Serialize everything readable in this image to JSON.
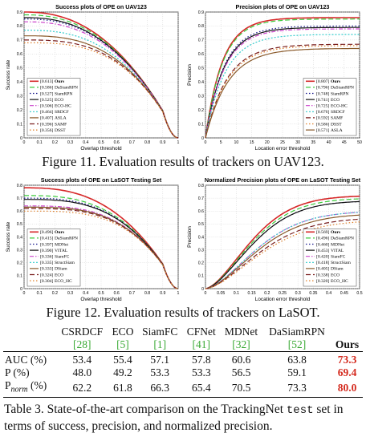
{
  "figure11": {
    "caption": "Figure 11. Evaluation results of trackers on UAV123.",
    "charts": [
      {
        "type": "line",
        "title": "Success plots of OPE on UAV123",
        "xlabel": "Overlap threshold",
        "ylabel": "Success rate",
        "xlim": [
          0,
          1
        ],
        "ylim": [
          0,
          0.9
        ],
        "legend": "bottom-left",
        "grid": true,
        "curve": "success",
        "xticks": [
          "0",
          "0.1",
          "0.2",
          "0.3",
          "0.4",
          "0.5",
          "0.6",
          "0.7",
          "0.8",
          "0.9",
          "1"
        ],
        "yticks": [
          "0",
          "0.1",
          "0.2",
          "0.3",
          "0.4",
          "0.5",
          "0.6",
          "0.7",
          "0.8",
          "0.9"
        ],
        "series": [
          {
            "name": "Ours",
            "score": "[0.613]",
            "bold": true,
            "color": "#d62728",
            "dash": "",
            "y0": 0.9
          },
          {
            "name": "DaSiamRPN",
            "score": "[0.586]",
            "color": "#3ecb3e",
            "dash": "6,3",
            "y0": 0.88
          },
          {
            "name": "SiamRPN",
            "score": "[0.527]",
            "color": "#1a1a8c",
            "dash": "1.5,2.5",
            "y0": 0.85
          },
          {
            "name": "ECO",
            "score": "[0.525]",
            "color": "#111111",
            "dash": "",
            "y0": 0.86
          },
          {
            "name": "ECO-HC",
            "score": "[0.506]",
            "color": "#cc44cc",
            "dash": "5,2,1.5,2",
            "y0": 0.83
          },
          {
            "name": "SRDCF",
            "score": "[0.464]",
            "color": "#33cccc",
            "dash": "2,2",
            "y0": 0.77
          },
          {
            "name": "ASLA",
            "score": "[0.407]",
            "color": "#8a5a2b",
            "dash": "",
            "y0": 0.73
          },
          {
            "name": "SAMF",
            "score": "[0.396]",
            "color": "#7a1f1f",
            "dash": "6,3",
            "y0": 0.7
          },
          {
            "name": "DSST",
            "score": "[0.356]",
            "color": "#e0802a",
            "dash": "1.5,2.5",
            "y0": 0.68
          }
        ]
      },
      {
        "type": "line",
        "title": "Precision plots of OPE on UAV123",
        "xlabel": "Location error threshold",
        "ylabel": "Precision",
        "xlim": [
          0,
          50
        ],
        "ylim": [
          0,
          0.9
        ],
        "legend": "bottom-right",
        "grid": true,
        "curve": "precision",
        "xticks": [
          "0",
          "5",
          "10",
          "15",
          "20",
          "25",
          "30",
          "35",
          "40",
          "45",
          "50"
        ],
        "yticks": [
          "0",
          "0.1",
          "0.2",
          "0.3",
          "0.4",
          "0.5",
          "0.6",
          "0.7",
          "0.8",
          "0.9"
        ],
        "series": [
          {
            "name": "Ours",
            "score": "[0.807]",
            "bold": true,
            "color": "#d62728",
            "dash": "",
            "yend": 0.86
          },
          {
            "name": "DaSiamRPN",
            "score": "[0.796]",
            "color": "#3ecb3e",
            "dash": "6,3",
            "yend": 0.85
          },
          {
            "name": "SiamRPN",
            "score": "[0.748]",
            "color": "#1a1a8c",
            "dash": "1.5,2.5",
            "yend": 0.8
          },
          {
            "name": "ECO",
            "score": "[0.741]",
            "color": "#111111",
            "dash": "",
            "yend": 0.79
          },
          {
            "name": "ECO-HC",
            "score": "[0.725]",
            "color": "#cc44cc",
            "dash": "5,2,1.5,2",
            "yend": 0.78
          },
          {
            "name": "SRDCF",
            "score": "[0.676]",
            "color": "#33cccc",
            "dash": "2,2",
            "yend": 0.74
          },
          {
            "name": "SAMF",
            "score": "[0.592]",
            "color": "#7a1f1f",
            "dash": "6,3",
            "yend": 0.67
          },
          {
            "name": "DSST",
            "score": "[0.586]",
            "color": "#e0802a",
            "dash": "1.5,2.5",
            "yend": 0.66
          },
          {
            "name": "ASLA",
            "score": "[0.571]",
            "color": "#8a5a2b",
            "dash": "",
            "yend": 0.64
          }
        ]
      }
    ]
  },
  "figure12": {
    "caption": "Figure 12. Evaluation results of trackers on LaSOT.",
    "charts": [
      {
        "type": "line",
        "title": "Success plots of OPE on LaSOT Testing Set",
        "xlabel": "Overlap threshold",
        "ylabel": "Success rate",
        "xlim": [
          0,
          1
        ],
        "ylim": [
          0,
          0.8
        ],
        "legend": "bottom-left",
        "grid": true,
        "curve": "success",
        "xticks": [
          "0",
          "0.1",
          "0.2",
          "0.3",
          "0.4",
          "0.5",
          "0.6",
          "0.7",
          "0.8",
          "0.9",
          "1"
        ],
        "yticks": [
          "0",
          "0.1",
          "0.2",
          "0.3",
          "0.4",
          "0.5",
          "0.6",
          "0.7",
          "0.8"
        ],
        "series": [
          {
            "name": "Ours",
            "score": "[0.496]",
            "bold": true,
            "color": "#d62728",
            "dash": "",
            "y0": 0.78
          },
          {
            "name": "DaSiamRPN",
            "score": "[0.415]",
            "color": "#3ecb3e",
            "dash": "6,3",
            "y0": 0.72
          },
          {
            "name": "MDNet",
            "score": "[0.397]",
            "color": "#1a1a8c",
            "dash": "1.5,2.5",
            "y0": 0.7
          },
          {
            "name": "VITAL",
            "score": "[0.390]",
            "color": "#111111",
            "dash": "",
            "y0": 0.69
          },
          {
            "name": "SiamFC",
            "score": "[0.336]",
            "color": "#cc44cc",
            "dash": "5,2,1.5,2",
            "y0": 0.64
          },
          {
            "name": "StructSiam",
            "score": "[0.335]",
            "color": "#33cccc",
            "dash": "2,2",
            "y0": 0.63
          },
          {
            "name": "DSiam",
            "score": "[0.333]",
            "color": "#8a5a2b",
            "dash": "",
            "y0": 0.63
          },
          {
            "name": "ECO",
            "score": "[0.324]",
            "color": "#7a1f1f",
            "dash": "6,3",
            "y0": 0.62
          },
          {
            "name": "ECO_HC",
            "score": "[0.304]",
            "color": "#e0802a",
            "dash": "1.5,2.5",
            "y0": 0.6
          }
        ]
      },
      {
        "type": "line",
        "title": "Normalized Precision plots of OPE on LaSOT Testing Set",
        "xlabel": "Location error threshold",
        "ylabel": "Precision",
        "xlim": [
          0,
          0.5
        ],
        "ylim": [
          0,
          0.8
        ],
        "legend": "bottom-right",
        "grid": true,
        "curve": "normprec",
        "xticks": [
          "0",
          "0.05",
          "0.1",
          "0.15",
          "0.2",
          "0.25",
          "0.3",
          "0.35",
          "0.4",
          "0.45",
          "0.5"
        ],
        "yticks": [
          "0",
          "0.1",
          "0.2",
          "0.3",
          "0.4",
          "0.5",
          "0.6",
          "0.7",
          "0.8"
        ],
        "series": [
          {
            "name": "Ours",
            "score": "[0.569]",
            "bold": true,
            "color": "#d62728",
            "dash": "",
            "yend": 0.72
          },
          {
            "name": "DaSiamRPN",
            "score": "[0.496]",
            "color": "#3ecb3e",
            "dash": "6,3",
            "yend": 0.7
          },
          {
            "name": "MDNet",
            "score": "[0.460]",
            "color": "#1a1a8c",
            "dash": "1.5,2.5",
            "yend": 0.68
          },
          {
            "name": "VITAL",
            "score": "[0.453]",
            "color": "#111111",
            "dash": "",
            "yend": 0.68
          },
          {
            "name": "SiamFC",
            "score": "[0.420]",
            "color": "#cc44cc",
            "dash": "5,2,1.5,2",
            "yend": 0.6
          },
          {
            "name": "StructSiam",
            "score": "[0.418]",
            "color": "#33cccc",
            "dash": "2,2",
            "yend": 0.6
          },
          {
            "name": "DSiam",
            "score": "[0.405]",
            "color": "#8a5a2b",
            "dash": "",
            "yend": 0.58
          },
          {
            "name": "ECO",
            "score": "[0.338]",
            "color": "#7a1f1f",
            "dash": "6,3",
            "yend": 0.55
          },
          {
            "name": "ECO_HC",
            "score": "[0.320]",
            "color": "#e0802a",
            "dash": "1.5,2.5",
            "yend": 0.53
          }
        ]
      }
    ]
  },
  "table3": {
    "headers": [
      {
        "name": "CSRDCF",
        "ref": "[28]"
      },
      {
        "name": "ECO",
        "ref": "[5]"
      },
      {
        "name": "SiamFC",
        "ref": "[1]"
      },
      {
        "name": "CFNet",
        "ref": "[41]"
      },
      {
        "name": "MDNet",
        "ref": "[32]"
      },
      {
        "name": "DaSiamRPN",
        "ref": "[52]"
      },
      {
        "name": "Ours",
        "ref": "",
        "ours": true
      }
    ],
    "rows": [
      {
        "label": "AUC (%)",
        "values": [
          "53.4",
          "55.4",
          "57.1",
          "57.8",
          "60.6",
          "63.8",
          "73.3"
        ]
      },
      {
        "label": "P (%)",
        "values": [
          "48.0",
          "49.2",
          "53.3",
          "53.3",
          "56.5",
          "59.1",
          "69.4"
        ]
      },
      {
        "label": "P",
        "label_sub": "norm",
        "label_tail": " (%)",
        "values": [
          "62.2",
          "61.8",
          "66.3",
          "65.4",
          "70.5",
          "73.3",
          "80.0"
        ]
      }
    ],
    "caption_pre": "Table 3. State-of-the-art comparison on the TrackingNet ",
    "caption_code": "test",
    "caption_post": " set in terms of success, precision, and normalized precision."
  }
}
